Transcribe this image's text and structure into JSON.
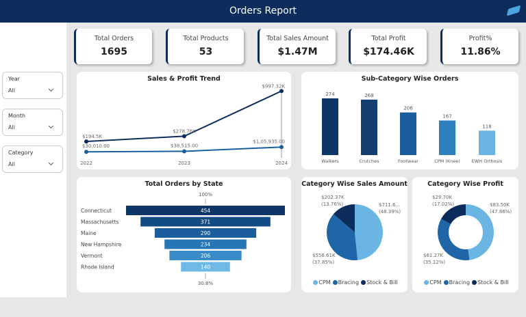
{
  "header": {
    "title": "Orders Report"
  },
  "slicers": [
    {
      "label": "Year",
      "value": "All"
    },
    {
      "label": "Month",
      "value": "All"
    },
    {
      "label": "Category",
      "value": "All"
    }
  ],
  "kpis": [
    {
      "label": "Total Orders",
      "value": "1695"
    },
    {
      "label": "Total Products",
      "value": "53"
    },
    {
      "label": "Total Sales Amount",
      "value": "$1.47M"
    },
    {
      "label": "Total Profit",
      "value": "$174.46K"
    },
    {
      "label": "Profit%",
      "value": "11.86%"
    }
  ],
  "chart_data": [
    {
      "type": "line",
      "title": "Sales & Profit Trend",
      "x": [
        "2022",
        "2023",
        "2024"
      ],
      "series": [
        {
          "name": "Sales",
          "values": [
            194.5,
            278.76,
            997.32
          ],
          "labels": [
            "$194.5K",
            "$278.76K",
            "$997.32K"
          ],
          "color": "#0c2d5c"
        },
        {
          "name": "Profit",
          "values": [
            30.01,
            38.515,
            105.935
          ],
          "labels": [
            "$30,010.00",
            "$38,515.00",
            "$1,05,935.00"
          ],
          "color": "#1a5e9e"
        }
      ]
    },
    {
      "type": "bar",
      "title": "Sub-Category Wise Orders",
      "categories": [
        "Walkers",
        "Crutches",
        "Footwear",
        "CPM (Knee)",
        "EWH Orthosis"
      ],
      "values": [
        274,
        268,
        206,
        167,
        118
      ],
      "colors": [
        "#0d3566",
        "#123d6e",
        "#1a5e9e",
        "#2d7fbd",
        "#6ab5e3"
      ]
    },
    {
      "type": "bar",
      "title": "Total Orders by State",
      "categories": [
        "Connecticut",
        "Massachusetts",
        "Maine",
        "New Hampshire",
        "Vermont",
        "Rhode Island"
      ],
      "values": [
        454,
        371,
        290,
        234,
        206,
        140
      ],
      "top_label": "100%",
      "bottom_label": "30.8%",
      "colors": [
        "#0d3566",
        "#134b85",
        "#1a5e9e",
        "#2675b5",
        "#3a8cc9",
        "#6fb9e6"
      ]
    },
    {
      "type": "pie",
      "title": "Category Wise Sales Amount",
      "categories": [
        "CPM",
        "Bracing",
        "Stock & Bill"
      ],
      "values": [
        48.39,
        37.85,
        13.76
      ],
      "labels": [
        "$711.6...\n(48.39%)",
        "$556.61K\n(37.85%)",
        "$202.37K\n(13.76%)"
      ]
    },
    {
      "type": "pie",
      "title": "Category Wise Profit",
      "donut": true,
      "categories": [
        "CPM",
        "Bracing",
        "Stock & Bill"
      ],
      "values": [
        47.86,
        35.12,
        17.02
      ],
      "labels": [
        "$83.50K\n(47.86%)",
        "$61.27K\n(35.12%)",
        "$29.70K\n(17.02%)"
      ]
    }
  ],
  "legend_colors": [
    "#6ab5e3",
    "#1f66a8",
    "#0c2d5c"
  ]
}
